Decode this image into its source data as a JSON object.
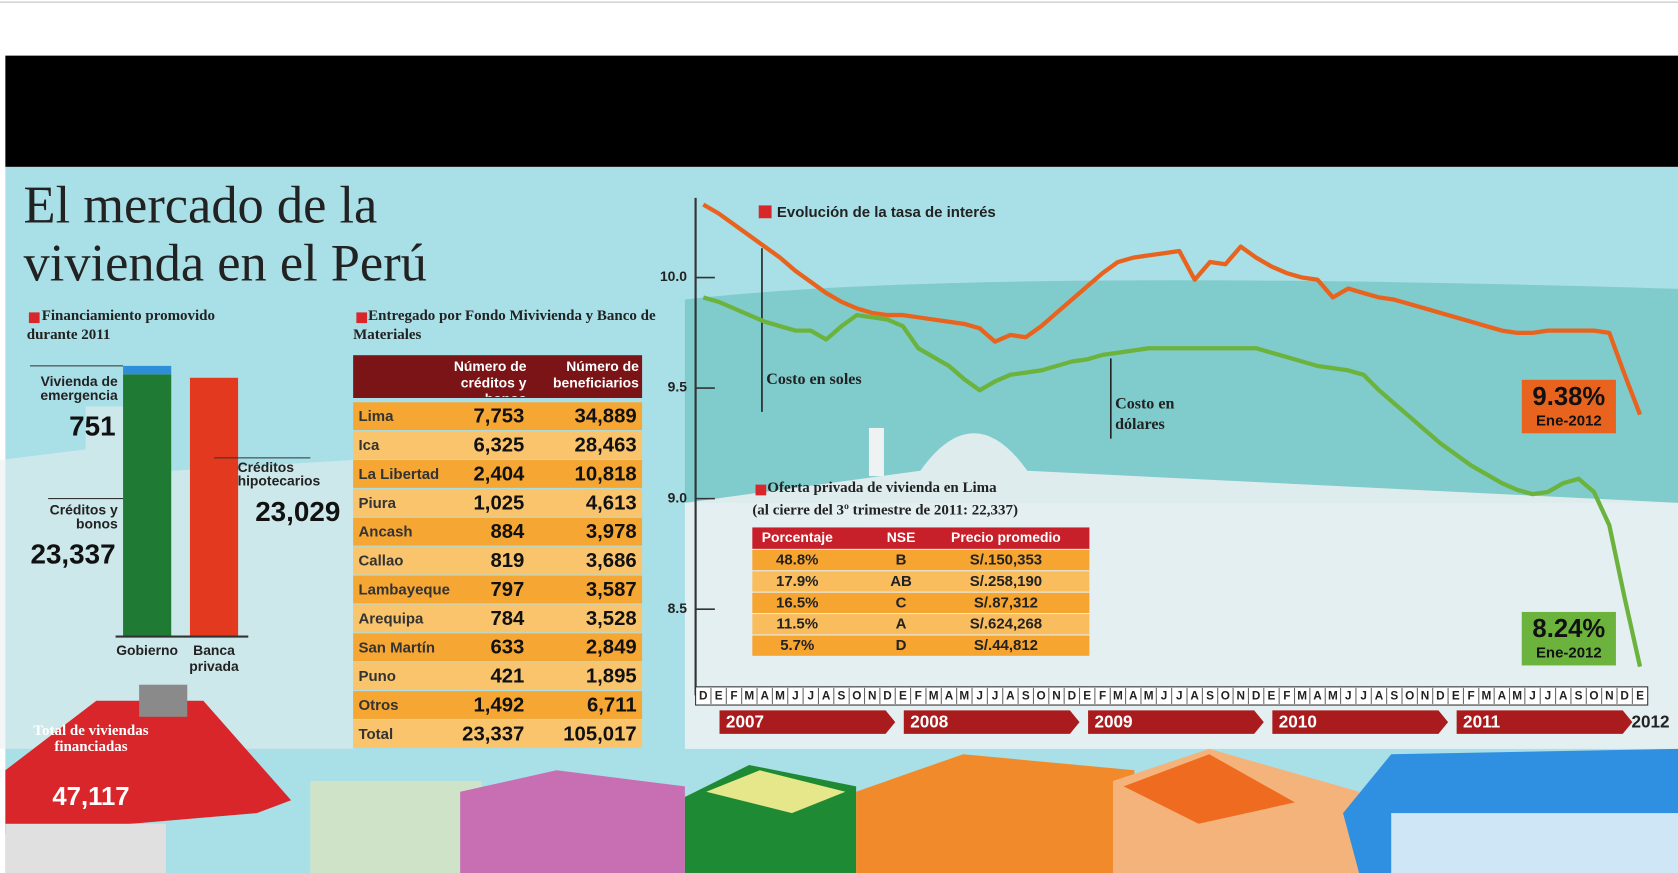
{
  "title": "El mercado de la vivienda en el Perú",
  "chart_data": [
    {
      "type": "bar",
      "stacked": true,
      "title": "Financiamiento promovido durante 2011",
      "categories": [
        "Gobierno",
        "Banca privada"
      ],
      "series": [
        {
          "name": "Créditos y bonos",
          "color": "#1f7a34",
          "values": [
            23337,
            null
          ],
          "value_labels": [
            "23,337",
            null
          ]
        },
        {
          "name": "Vivienda de emergencia",
          "color": "#2e8fd8",
          "values": [
            751,
            null
          ],
          "value_labels": [
            "751",
            null
          ]
        },
        {
          "name": "Créditos hipotecarios",
          "color": "#e2391f",
          "values": [
            null,
            23029
          ],
          "value_labels": [
            null,
            "23,029"
          ]
        }
      ],
      "total_label": "Total de viviendas financiadas",
      "total_value": "47,117"
    },
    {
      "type": "line",
      "title": "Evolución de la tasa de interés",
      "categories": [
        "D",
        "E",
        "F",
        "M",
        "A",
        "M",
        "J",
        "J",
        "A",
        "S",
        "O",
        "N",
        "D",
        "E",
        "F",
        "M",
        "A",
        "M",
        "J",
        "J",
        "A",
        "S",
        "O",
        "N",
        "D",
        "E",
        "F",
        "M",
        "A",
        "M",
        "J",
        "J",
        "A",
        "S",
        "O",
        "N",
        "D",
        "E",
        "F",
        "M",
        "A",
        "M",
        "J",
        "J",
        "A",
        "S",
        "O",
        "N",
        "D",
        "E",
        "F",
        "M",
        "A",
        "M",
        "J",
        "J",
        "A",
        "S",
        "O",
        "N",
        "D",
        "E"
      ],
      "years": [
        "2007",
        "2008",
        "2009",
        "2010",
        "2011",
        "2012"
      ],
      "ylim": [
        8.11,
        10.36
      ],
      "yticks": [
        8.5,
        {
          "value": 9,
          "label": "9.0"
        },
        9.5,
        {
          "value": 10,
          "label": "10.0"
        }
      ],
      "series": [
        {
          "name": "Costo en soles",
          "color": "#e8641e",
          "end_label": "9.38%",
          "end_date": "Ene-2012",
          "values": [
            10.33,
            10.29,
            10.24,
            10.19,
            10.14,
            10.09,
            10.03,
            9.98,
            9.93,
            9.89,
            9.86,
            9.84,
            9.83,
            9.83,
            9.82,
            9.81,
            9.8,
            9.79,
            9.77,
            9.71,
            9.74,
            9.73,
            9.78,
            9.84,
            9.9,
            9.96,
            10.02,
            10.07,
            10.09,
            10.1,
            10.11,
            10.12,
            9.99,
            10.07,
            10.06,
            10.14,
            10.09,
            10.05,
            10.02,
            10.0,
            9.99,
            9.91,
            9.95,
            9.93,
            9.91,
            9.9,
            9.88,
            9.86,
            9.84,
            9.82,
            9.8,
            9.78,
            9.76,
            9.75,
            9.75,
            9.76,
            9.76,
            9.76,
            9.76,
            9.75,
            9.56,
            9.38
          ]
        },
        {
          "name": "Costo en dólares",
          "color": "#6cb33e",
          "end_label": "8.24%",
          "end_date": "Ene-2012",
          "values": [
            9.91,
            9.89,
            9.86,
            9.83,
            9.8,
            9.78,
            9.76,
            9.76,
            9.72,
            9.78,
            9.83,
            9.82,
            9.81,
            9.78,
            9.68,
            9.64,
            9.6,
            9.54,
            9.49,
            9.53,
            9.56,
            9.57,
            9.58,
            9.6,
            9.62,
            9.63,
            9.65,
            9.66,
            9.67,
            9.68,
            9.68,
            9.68,
            9.68,
            9.68,
            9.68,
            9.68,
            9.68,
            9.66,
            9.64,
            9.62,
            9.6,
            9.59,
            9.58,
            9.56,
            9.49,
            9.43,
            9.37,
            9.31,
            9.25,
            9.2,
            9.15,
            9.11,
            9.07,
            9.04,
            9.02,
            9.03,
            9.07,
            9.09,
            9.03,
            8.88,
            8.55,
            8.24
          ]
        }
      ]
    }
  ],
  "table_fondo": {
    "title": "Entregado por Fondo Mivivienda y Banco de Materiales",
    "columns": [
      "Número de créditos y bonos",
      "Número de beneficiarios"
    ],
    "rows": [
      [
        "Lima",
        "7,753",
        "34,889"
      ],
      [
        "Ica",
        "6,325",
        "28,463"
      ],
      [
        "La Libertad",
        "2,404",
        "10,818"
      ],
      [
        "Piura",
        "1,025",
        "4,613"
      ],
      [
        "Ancash",
        "884",
        "3,978"
      ],
      [
        "Callao",
        "819",
        "3,686"
      ],
      [
        "Lambayeque",
        "797",
        "3,587"
      ],
      [
        "Arequipa",
        "784",
        "3,528"
      ],
      [
        "San Martín",
        "633",
        "2,849"
      ],
      [
        "Puno",
        "421",
        "1,895"
      ],
      [
        "Otros",
        "1,492",
        "6,711"
      ],
      [
        "Total",
        "23,337",
        "105,017"
      ]
    ]
  },
  "table_oferta": {
    "title": "Oferta privada de vivienda en Lima",
    "subtitle": "(al cierre del 3º trimestre de 2011: 22,337)",
    "columns": [
      "Porcentaje",
      "NSE",
      "Precio promedio"
    ],
    "rows": [
      [
        "48.8%",
        "B",
        "S/.150,353"
      ],
      [
        "17.9%",
        "AB",
        "S/.258,190"
      ],
      [
        "16.5%",
        "C",
        "S/.87,312"
      ],
      [
        "11.5%",
        "A",
        "S/.624,268"
      ],
      [
        "5.7%",
        "D",
        "S/.44,812"
      ]
    ]
  }
}
